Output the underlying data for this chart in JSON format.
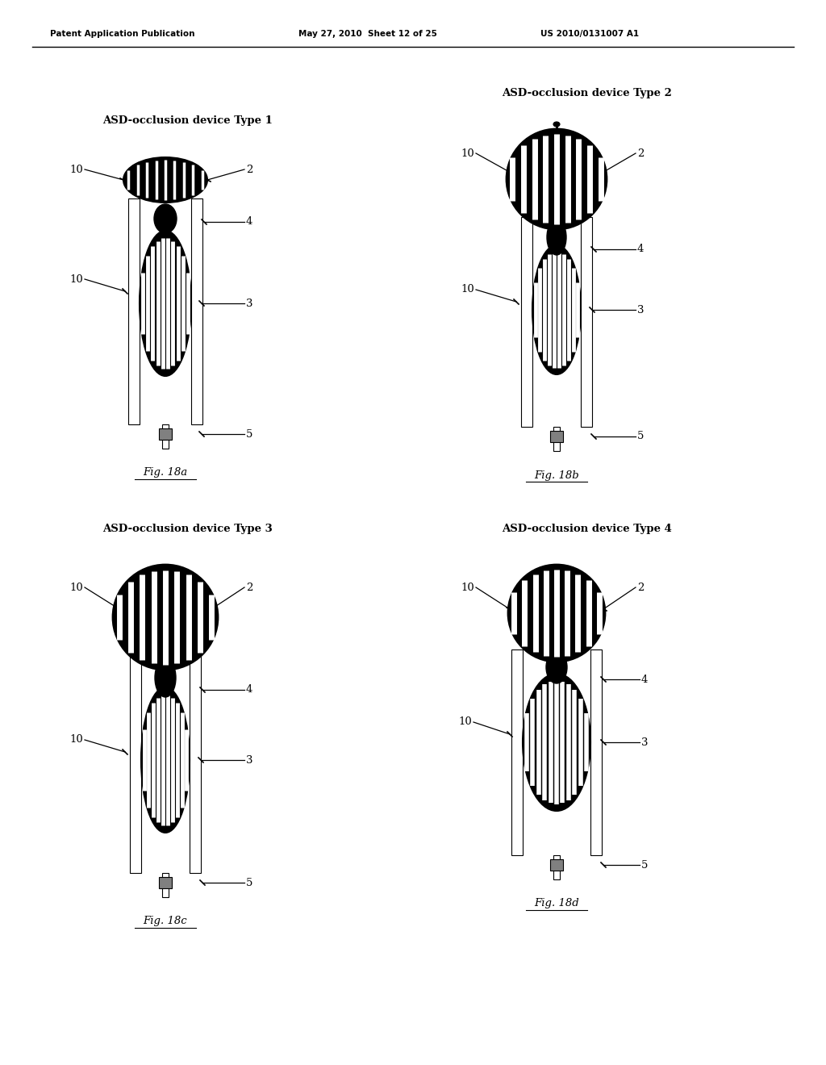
{
  "header_left": "Patent Application Publication",
  "header_mid": "May 27, 2010  Sheet 12 of 25",
  "header_right": "US 2010/0131007 A1",
  "diagrams": [
    {
      "title": "ASD-occlusion device Type 1",
      "fig_label": "Fig. 18a",
      "type": 1
    },
    {
      "title": "ASD-occlusion device Type 2",
      "fig_label": "Fig. 18b",
      "type": 2
    },
    {
      "title": "ASD-occlusion device Type 3",
      "fig_label": "Fig. 18c",
      "type": 3
    },
    {
      "title": "ASD-occlusion device Type 4",
      "fig_label": "Fig. 18d",
      "type": 4
    }
  ],
  "bg_color": "#ffffff"
}
